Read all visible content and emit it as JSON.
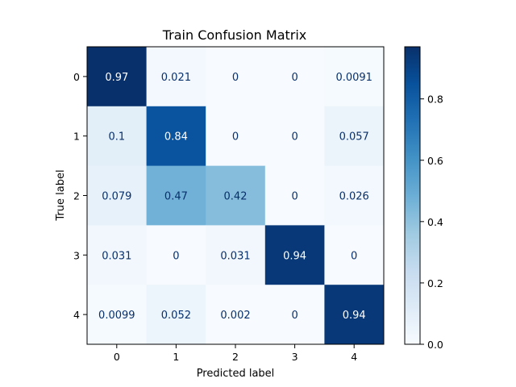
{
  "chart_data": {
    "type": "heatmap",
    "title": "Train Confusion Matrix",
    "xlabel": "Predicted label",
    "ylabel": "True label",
    "x_categories": [
      "0",
      "1",
      "2",
      "3",
      "4"
    ],
    "y_categories": [
      "0",
      "1",
      "2",
      "3",
      "4"
    ],
    "values": [
      [
        0.97,
        0.021,
        0,
        0,
        0.0091
      ],
      [
        0.1,
        0.84,
        0,
        0,
        0.057
      ],
      [
        0.079,
        0.47,
        0.42,
        0,
        0.026
      ],
      [
        0.031,
        0,
        0.031,
        0.94,
        0
      ],
      [
        0.0099,
        0.052,
        0.002,
        0,
        0.94
      ]
    ],
    "value_labels": [
      [
        "0.97",
        "0.021",
        "0",
        "0",
        "0.0091"
      ],
      [
        "0.1",
        "0.84",
        "0",
        "0",
        "0.057"
      ],
      [
        "0.079",
        "0.47",
        "0.42",
        "0",
        "0.026"
      ],
      [
        "0.031",
        "0",
        "0.031",
        "0.94",
        "0"
      ],
      [
        "0.0099",
        "0.052",
        "0.002",
        "0",
        "0.94"
      ]
    ],
    "colormap": "Blues",
    "color_range": [
      0,
      0.97
    ],
    "colorbar_ticks": [
      "0.0",
      "0.2",
      "0.4",
      "0.6",
      "0.8"
    ],
    "colorbar_tick_values": [
      0,
      0.2,
      0.4,
      0.6,
      0.8
    ],
    "grid": false,
    "legend": "colorbar-right"
  }
}
